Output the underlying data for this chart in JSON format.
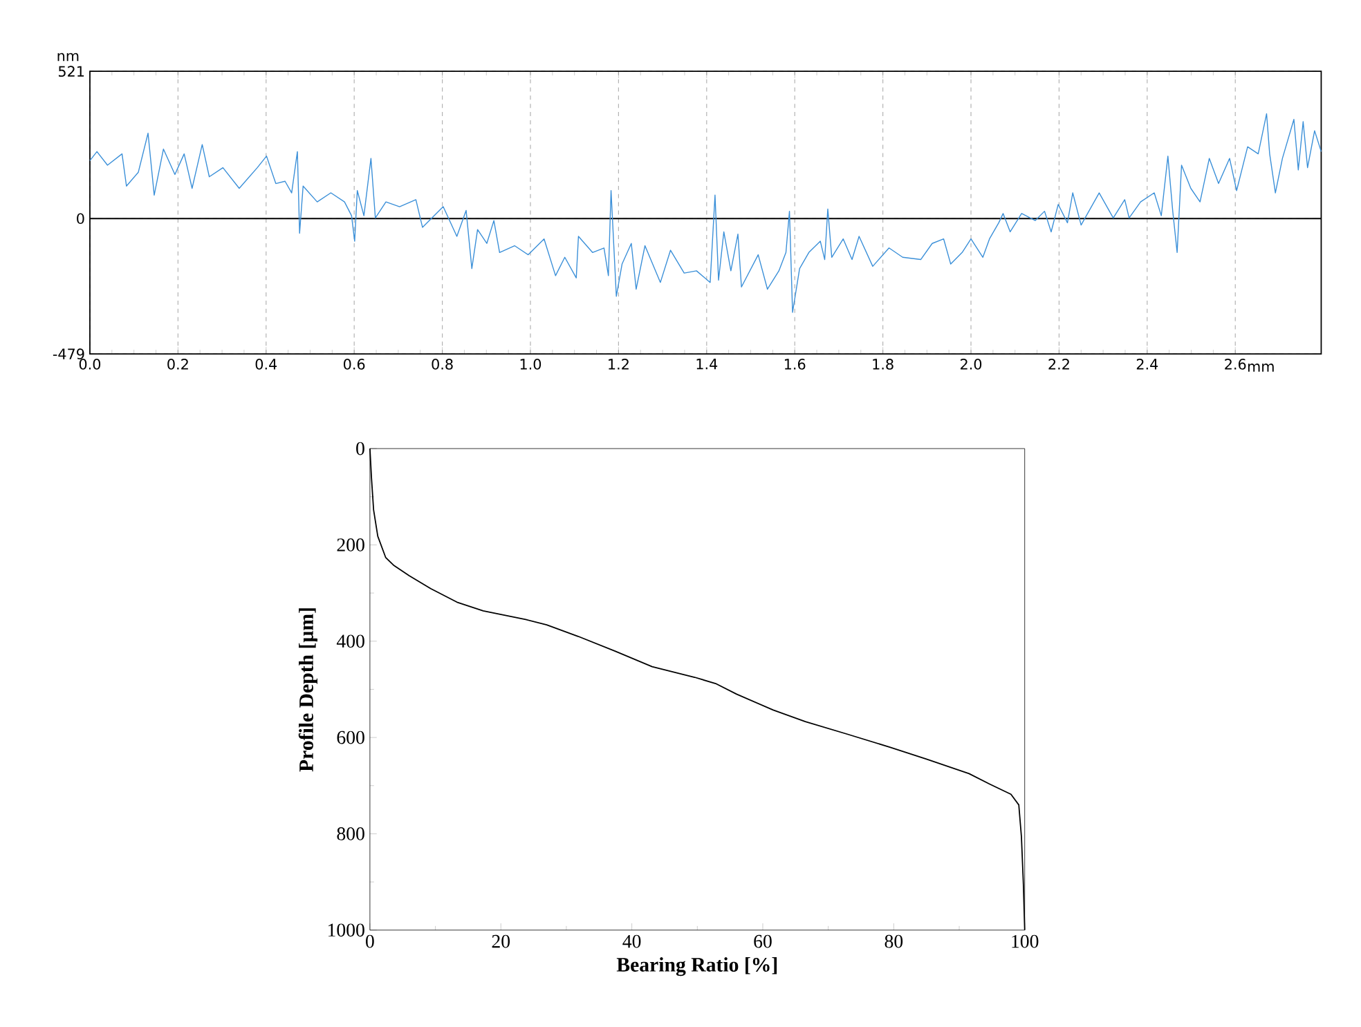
{
  "chart_data": [
    {
      "type": "line",
      "ylabel": "nm",
      "xlabel": "mm",
      "color": "#3a8fd8",
      "grid": true,
      "xlim": [
        0,
        2.795
      ],
      "ylim": [
        -479,
        521
      ],
      "xticks": [
        {
          "value": 0,
          "label": "0.0"
        },
        {
          "value": 0.2,
          "label": "0.2"
        },
        {
          "value": 0.4,
          "label": "0.4"
        },
        {
          "value": 0.6,
          "label": "0.6"
        },
        {
          "value": 0.8,
          "label": "0.8"
        },
        {
          "value": 1.0,
          "label": "1.0"
        },
        {
          "value": 1.2,
          "label": "1.2"
        },
        {
          "value": 1.4,
          "label": "1.4"
        },
        {
          "value": 1.6,
          "label": "1.6"
        },
        {
          "value": 1.8,
          "label": "1.8"
        },
        {
          "value": 2.0,
          "label": "2.0"
        },
        {
          "value": 2.2,
          "label": "2.2"
        },
        {
          "value": 2.4,
          "label": "2.4"
        },
        {
          "value": 2.6,
          "label": "2.6"
        }
      ],
      "yticks": [
        -479,
        0,
        521
      ],
      "ref_lines": [
        {
          "axis": "y",
          "value": 0,
          "color": "#000000"
        }
      ],
      "x": [
        0,
        0.016,
        0.04,
        0.073,
        0.083,
        0.11,
        0.132,
        0.146,
        0.167,
        0.193,
        0.214,
        0.232,
        0.255,
        0.271,
        0.302,
        0.339,
        0.38,
        0.401,
        0.422,
        0.443,
        0.458,
        0.471,
        0.476,
        0.484,
        0.516,
        0.547,
        0.578,
        0.594,
        0.601,
        0.607,
        0.622,
        0.638,
        0.648,
        0.672,
        0.703,
        0.74,
        0.755,
        0.802,
        0.833,
        0.854,
        0.867,
        0.88,
        0.901,
        0.917,
        0.93,
        0.964,
        0.995,
        1.031,
        1.057,
        1.078,
        1.104,
        1.109,
        1.141,
        1.167,
        1.177,
        1.183,
        1.195,
        1.208,
        1.229,
        1.24,
        1.26,
        1.295,
        1.318,
        1.349,
        1.377,
        1.408,
        1.419,
        1.427,
        1.439,
        1.455,
        1.471,
        1.479,
        1.517,
        1.538,
        1.564,
        1.58,
        1.588,
        1.595,
        1.611,
        1.632,
        1.658,
        1.668,
        1.675,
        1.684,
        1.71,
        1.73,
        1.746,
        1.777,
        1.814,
        1.845,
        1.886,
        1.912,
        1.938,
        1.954,
        1.98,
        2.0,
        2.027,
        2.042,
        2.063,
        2.073,
        2.089,
        2.115,
        2.146,
        2.167,
        2.182,
        2.198,
        2.219,
        2.231,
        2.25,
        2.291,
        2.323,
        2.349,
        2.359,
        2.385,
        2.416,
        2.432,
        2.447,
        2.458,
        2.468,
        2.478,
        2.499,
        2.52,
        2.541,
        2.562,
        2.587,
        2.603,
        2.628,
        2.652,
        2.671,
        2.678,
        2.691,
        2.707,
        2.733,
        2.743,
        2.754,
        2.764,
        2.78,
        2.795
      ],
      "values": [
        205,
        237,
        189,
        229,
        115,
        164,
        302,
        83,
        246,
        156,
        229,
        107,
        262,
        148,
        180,
        107,
        180,
        221,
        124,
        132,
        91,
        237,
        -52,
        115,
        59,
        91,
        59,
        10,
        -80,
        99,
        10,
        213,
        2,
        59,
        42,
        67,
        -31,
        42,
        -63,
        29,
        -177,
        -39,
        -88,
        -7,
        -120,
        -96,
        -128,
        -72,
        -202,
        -137,
        -210,
        -63,
        -120,
        -104,
        -202,
        99,
        -275,
        -161,
        -88,
        -250,
        -96,
        -226,
        -112,
        -193,
        -185,
        -226,
        83,
        -218,
        -47,
        -185,
        -55,
        -242,
        -128,
        -250,
        -185,
        -120,
        26,
        -332,
        -177,
        -120,
        -80,
        -145,
        34,
        -137,
        -72,
        -145,
        -63,
        -169,
        -104,
        -137,
        -145,
        -88,
        -72,
        -161,
        -120,
        -72,
        -137,
        -72,
        -15,
        18,
        -47,
        18,
        -7,
        26,
        -47,
        50,
        -15,
        91,
        -23,
        91,
        2,
        67,
        2,
        59,
        91,
        10,
        221,
        26,
        -120,
        189,
        107,
        59,
        213,
        124,
        213,
        99,
        254,
        229,
        371,
        229,
        91,
        213,
        351,
        172,
        343,
        180,
        311,
        237
      ]
    },
    {
      "type": "line",
      "xlabel": "Bearing Ratio [%]",
      "ylabel": "Profile Depth [µm]",
      "color": "#000000",
      "xlim": [
        0,
        100
      ],
      "ylim": [
        1000,
        0
      ],
      "xticks": [
        0,
        20,
        40,
        60,
        80,
        100
      ],
      "yticks": [
        0,
        200,
        400,
        600,
        800,
        1000
      ],
      "x": [
        0,
        0.24,
        0.56,
        1.2,
        2.4,
        3.6,
        6,
        9.3,
        13.3,
        17.3,
        23.8,
        27,
        31.8,
        37.5,
        43.1,
        49.6,
        52.8,
        56,
        61.6,
        66.5,
        72.9,
        79.4,
        85,
        91.5,
        94.7,
        97.9,
        99.1,
        99.5,
        99.8,
        100
      ],
      "values": [
        0,
        61,
        127,
        182,
        226,
        242,
        264,
        291,
        319,
        337,
        355,
        366,
        390,
        421,
        453,
        475,
        488,
        510,
        543,
        567,
        593,
        620,
        645,
        675,
        697,
        718,
        740,
        806,
        905,
        1000
      ]
    }
  ]
}
